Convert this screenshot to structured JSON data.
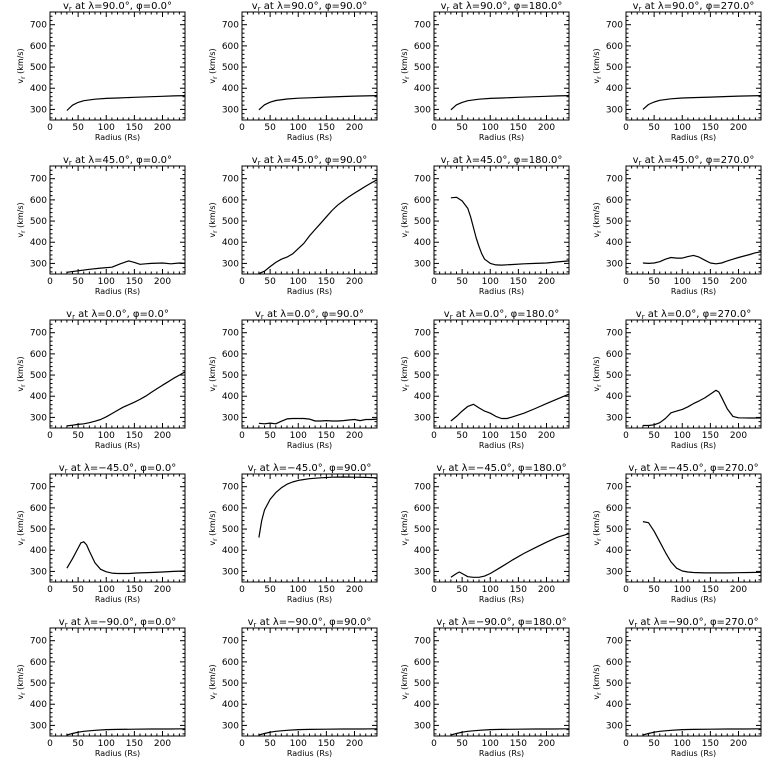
{
  "chart_data": [
    {
      "type": "line",
      "title": "v_r at λ=90.0°, φ=0.0°",
      "title_parts": {
        "var": "v",
        "sub": "r",
        "lat": "90.0",
        "lon": "0.0"
      },
      "xlabel": "Radius (Rs)",
      "ylabel": "v_r (km/s)",
      "xlim": [
        0,
        240
      ],
      "ylim": [
        250,
        760
      ],
      "x": [
        30,
        40,
        50,
        60,
        80,
        100,
        120,
        150,
        180,
        200,
        220,
        240
      ],
      "y": [
        295,
        320,
        333,
        341,
        348,
        352,
        354,
        357,
        360,
        362,
        364,
        365
      ]
    },
    {
      "type": "line",
      "title": "v_r at λ=90.0°, φ=90.0°",
      "title_parts": {
        "var": "v",
        "sub": "r",
        "lat": "90.0",
        "lon": "90.0"
      },
      "xlabel": "Radius (Rs)",
      "ylabel": "v_r (km/s)",
      "xlim": [
        0,
        240
      ],
      "ylim": [
        250,
        760
      ],
      "x": [
        30,
        40,
        50,
        60,
        80,
        100,
        120,
        150,
        180,
        200,
        220,
        240
      ],
      "y": [
        298,
        322,
        334,
        342,
        349,
        353,
        355,
        358,
        361,
        363,
        364,
        365
      ]
    },
    {
      "type": "line",
      "title": "v_r at λ=90.0°, φ=180.0°",
      "title_parts": {
        "var": "v",
        "sub": "r",
        "lat": "90.0",
        "lon": "180.0"
      },
      "xlabel": "Radius (Rs)",
      "ylabel": "v_r (km/s)",
      "xlim": [
        0,
        240
      ],
      "ylim": [
        250,
        760
      ],
      "x": [
        30,
        40,
        50,
        60,
        80,
        100,
        120,
        150,
        180,
        200,
        220,
        240
      ],
      "y": [
        298,
        322,
        333,
        341,
        348,
        352,
        354,
        357,
        360,
        362,
        364,
        365
      ]
    },
    {
      "type": "line",
      "title": "v_r at λ=90.0°, φ=270.0°",
      "title_parts": {
        "var": "v",
        "sub": "r",
        "lat": "90.0",
        "lon": "270.0"
      },
      "xlabel": "Radius (Rs)",
      "ylabel": "v_r (km/s)",
      "xlim": [
        0,
        240
      ],
      "ylim": [
        250,
        760
      ],
      "x": [
        30,
        40,
        50,
        60,
        80,
        100,
        120,
        150,
        180,
        200,
        220,
        240
      ],
      "y": [
        300,
        323,
        335,
        343,
        350,
        354,
        356,
        358,
        361,
        363,
        364,
        365
      ]
    },
    {
      "type": "line",
      "title": "v_r at λ=45.0°, φ=0.0°",
      "title_parts": {
        "var": "v",
        "sub": "r",
        "lat": "45.0",
        "lon": "0.0"
      },
      "xlabel": "Radius (Rs)",
      "ylabel": "v_r (km/s)",
      "xlim": [
        0,
        240
      ],
      "ylim": [
        250,
        760
      ],
      "x": [
        30,
        50,
        70,
        90,
        110,
        125,
        140,
        150,
        160,
        170,
        180,
        200,
        215,
        230,
        240
      ],
      "y": [
        258,
        265,
        272,
        278,
        282,
        298,
        312,
        305,
        296,
        298,
        300,
        302,
        298,
        302,
        300
      ]
    },
    {
      "type": "line",
      "title": "v_r at λ=45.0°, φ=90.0°",
      "title_parts": {
        "var": "v",
        "sub": "r",
        "lat": "45.0",
        "lon": "90.0"
      },
      "xlabel": "Radius (Rs)",
      "ylabel": "v_r (km/s)",
      "xlim": [
        0,
        240
      ],
      "ylim": [
        250,
        760
      ],
      "x": [
        30,
        40,
        50,
        60,
        70,
        80,
        90,
        100,
        110,
        120,
        130,
        140,
        150,
        160,
        170,
        180,
        190,
        200,
        210,
        220,
        230,
        240
      ],
      "y": [
        252,
        263,
        285,
        305,
        320,
        330,
        345,
        370,
        395,
        430,
        460,
        490,
        520,
        550,
        575,
        595,
        615,
        632,
        648,
        665,
        680,
        695
      ]
    },
    {
      "type": "line",
      "title": "v_r at λ=45.0°, φ=180.0°",
      "title_parts": {
        "var": "v",
        "sub": "r",
        "lat": "45.0",
        "lon": "180.0"
      },
      "xlabel": "Radius (Rs)",
      "ylabel": "v_r (km/s)",
      "xlim": [
        0,
        240
      ],
      "ylim": [
        250,
        760
      ],
      "x": [
        30,
        40,
        50,
        60,
        65,
        70,
        75,
        80,
        85,
        90,
        100,
        110,
        120,
        140,
        160,
        180,
        200,
        220,
        240
      ],
      "y": [
        610,
        612,
        595,
        560,
        520,
        470,
        420,
        380,
        345,
        320,
        300,
        293,
        292,
        295,
        298,
        300,
        302,
        307,
        312
      ]
    },
    {
      "type": "line",
      "title": "v_r at λ=45.0°, φ=270.0°",
      "title_parts": {
        "var": "v",
        "sub": "r",
        "lat": "45.0",
        "lon": "270.0"
      },
      "xlabel": "Radius (Rs)",
      "ylabel": "v_r (km/s)",
      "xlim": [
        0,
        240
      ],
      "ylim": [
        250,
        760
      ],
      "x": [
        30,
        40,
        50,
        60,
        70,
        80,
        90,
        100,
        110,
        120,
        130,
        140,
        150,
        160,
        170,
        180,
        190,
        200,
        210,
        220,
        230,
        240
      ],
      "y": [
        302,
        300,
        302,
        308,
        320,
        328,
        325,
        325,
        332,
        338,
        330,
        315,
        302,
        298,
        302,
        312,
        320,
        328,
        335,
        342,
        350,
        355
      ]
    },
    {
      "type": "line",
      "title": "v_r at λ=0.0°, φ=0.0°",
      "title_parts": {
        "var": "v",
        "sub": "r",
        "lat": "0.0",
        "lon": "0.0"
      },
      "xlabel": "Radius (Rs)",
      "ylabel": "v_r (km/s)",
      "xlim": [
        0,
        240
      ],
      "ylim": [
        250,
        760
      ],
      "x": [
        30,
        40,
        50,
        60,
        70,
        80,
        90,
        100,
        110,
        120,
        130,
        140,
        150,
        160,
        170,
        180,
        190,
        200,
        210,
        220,
        230,
        240
      ],
      "y": [
        260,
        263,
        267,
        270,
        275,
        282,
        290,
        303,
        318,
        333,
        348,
        360,
        372,
        385,
        400,
        418,
        435,
        452,
        468,
        485,
        500,
        515
      ]
    },
    {
      "type": "line",
      "title": "v_r at λ=0.0°, φ=90.0°",
      "title_parts": {
        "var": "v",
        "sub": "r",
        "lat": "0.0",
        "lon": "90.0"
      },
      "xlabel": "Radius (Rs)",
      "ylabel": "v_r (km/s)",
      "xlim": [
        0,
        240
      ],
      "ylim": [
        250,
        760
      ],
      "x": [
        30,
        40,
        50,
        60,
        70,
        80,
        90,
        100,
        110,
        120,
        130,
        140,
        150,
        160,
        170,
        180,
        190,
        200,
        210,
        220,
        230,
        240
      ],
      "y": [
        272,
        270,
        273,
        270,
        282,
        293,
        295,
        295,
        295,
        292,
        283,
        283,
        285,
        283,
        283,
        285,
        288,
        290,
        285,
        290,
        290,
        292
      ]
    },
    {
      "type": "line",
      "title": "v_r at λ=0.0°, φ=180.0°",
      "title_parts": {
        "var": "v",
        "sub": "r",
        "lat": "0.0",
        "lon": "180.0"
      },
      "xlabel": "Radius (Rs)",
      "ylabel": "v_r (km/s)",
      "xlim": [
        0,
        240
      ],
      "ylim": [
        250,
        760
      ],
      "x": [
        30,
        40,
        50,
        60,
        70,
        80,
        90,
        100,
        110,
        120,
        130,
        140,
        160,
        180,
        200,
        220,
        240
      ],
      "y": [
        283,
        305,
        330,
        352,
        362,
        345,
        330,
        320,
        305,
        295,
        295,
        303,
        320,
        342,
        365,
        388,
        410
      ]
    },
    {
      "type": "line",
      "title": "v_r at λ=0.0°, φ=270.0°",
      "title_parts": {
        "var": "v",
        "sub": "r",
        "lat": "0.0",
        "lon": "270.0"
      },
      "xlabel": "Radius (Rs)",
      "ylabel": "v_r (km/s)",
      "xlim": [
        0,
        240
      ],
      "ylim": [
        250,
        760
      ],
      "x": [
        30,
        40,
        50,
        60,
        70,
        80,
        90,
        100,
        110,
        120,
        130,
        140,
        150,
        160,
        165,
        170,
        180,
        190,
        200,
        220,
        240
      ],
      "y": [
        262,
        262,
        265,
        275,
        295,
        322,
        330,
        338,
        350,
        365,
        378,
        392,
        410,
        428,
        420,
        395,
        340,
        305,
        298,
        297,
        297
      ]
    },
    {
      "type": "line",
      "title": "v_r at λ=−45.0°, φ=0.0°",
      "title_parts": {
        "var": "v",
        "sub": "r",
        "lat": "−45.0",
        "lon": "0.0"
      },
      "xlabel": "Radius (Rs)",
      "ylabel": "v_r (km/s)",
      "xlim": [
        0,
        240
      ],
      "ylim": [
        250,
        760
      ],
      "x": [
        30,
        40,
        50,
        55,
        60,
        65,
        70,
        80,
        90,
        100,
        110,
        120,
        130,
        140,
        150,
        160,
        180,
        200,
        220,
        240
      ],
      "y": [
        315,
        360,
        410,
        435,
        440,
        425,
        395,
        340,
        310,
        298,
        292,
        290,
        290,
        290,
        292,
        293,
        295,
        297,
        300,
        302
      ]
    },
    {
      "type": "line",
      "title": "v_r at λ=−45.0°, φ=90.0°",
      "title_parts": {
        "var": "v",
        "sub": "r",
        "lat": "−45.0",
        "lon": "90.0"
      },
      "xlabel": "Radius (Rs)",
      "ylabel": "v_r (km/s)",
      "xlim": [
        0,
        240
      ],
      "ylim": [
        250,
        760
      ],
      "x": [
        30,
        35,
        40,
        50,
        60,
        70,
        80,
        90,
        100,
        120,
        140,
        160,
        180,
        200,
        220,
        240
      ],
      "y": [
        460,
        540,
        590,
        640,
        672,
        695,
        712,
        722,
        730,
        738,
        742,
        745,
        746,
        745,
        744,
        742
      ]
    },
    {
      "type": "line",
      "title": "v_r at λ=−45.0°, φ=180.0°",
      "title_parts": {
        "var": "v",
        "sub": "r",
        "lat": "−45.0",
        "lon": "180.0"
      },
      "xlabel": "Radius (Rs)",
      "ylabel": "v_r (km/s)",
      "xlim": [
        0,
        240
      ],
      "ylim": [
        250,
        760
      ],
      "x": [
        30,
        40,
        45,
        50,
        60,
        70,
        80,
        90,
        100,
        120,
        140,
        160,
        180,
        200,
        220,
        240
      ],
      "y": [
        272,
        290,
        297,
        290,
        275,
        272,
        272,
        278,
        290,
        322,
        355,
        385,
        412,
        438,
        462,
        478
      ]
    },
    {
      "type": "line",
      "title": "v_r at λ=−45.0°, φ=270.0°",
      "title_parts": {
        "var": "v",
        "sub": "r",
        "lat": "−45.0",
        "lon": "270.0"
      },
      "xlabel": "Radius (Rs)",
      "ylabel": "v_r (km/s)",
      "xlim": [
        0,
        240
      ],
      "ylim": [
        250,
        760
      ],
      "x": [
        30,
        40,
        50,
        60,
        70,
        80,
        90,
        100,
        110,
        120,
        140,
        160,
        180,
        200,
        220,
        240
      ],
      "y": [
        535,
        530,
        490,
        440,
        390,
        345,
        315,
        302,
        297,
        295,
        293,
        293,
        293,
        294,
        295,
        296
      ]
    },
    {
      "type": "line",
      "title": "v_r at λ=−90.0°, φ=0.0°",
      "title_parts": {
        "var": "v",
        "sub": "r",
        "lat": "−90.0",
        "lon": "0.0"
      },
      "xlabel": "Radius (Rs)",
      "ylabel": "v_r (km/s)",
      "xlim": [
        0,
        240
      ],
      "ylim": [
        250,
        760
      ],
      "x": [
        30,
        40,
        50,
        60,
        80,
        100,
        120,
        150,
        180,
        210,
        240
      ],
      "y": [
        255,
        262,
        268,
        272,
        277,
        280,
        281,
        282,
        283,
        283,
        284
      ]
    },
    {
      "type": "line",
      "title": "v_r at λ=−90.0°, φ=90.0°",
      "title_parts": {
        "var": "v",
        "sub": "r",
        "lat": "−90.0",
        "lon": "90.0"
      },
      "xlabel": "Radius (Rs)",
      "ylabel": "v_r (km/s)",
      "xlim": [
        0,
        240
      ],
      "ylim": [
        250,
        760
      ],
      "x": [
        30,
        40,
        50,
        60,
        80,
        100,
        120,
        150,
        180,
        210,
        240
      ],
      "y": [
        255,
        262,
        268,
        272,
        277,
        280,
        281,
        282,
        283,
        283,
        284
      ]
    },
    {
      "type": "line",
      "title": "v_r at λ=−90.0°, φ=180.0°",
      "title_parts": {
        "var": "v",
        "sub": "r",
        "lat": "−90.0",
        "lon": "180.0"
      },
      "xlabel": "Radius (Rs)",
      "ylabel": "v_r (km/s)",
      "xlim": [
        0,
        240
      ],
      "ylim": [
        250,
        760
      ],
      "x": [
        30,
        40,
        50,
        60,
        80,
        100,
        120,
        150,
        180,
        210,
        240
      ],
      "y": [
        255,
        262,
        268,
        272,
        277,
        280,
        281,
        282,
        283,
        283,
        284
      ]
    },
    {
      "type": "line",
      "title": "v_r at λ=−90.0°, φ=270.0°",
      "title_parts": {
        "var": "v",
        "sub": "r",
        "lat": "−90.0",
        "lon": "270.0"
      },
      "xlabel": "Radius (Rs)",
      "ylabel": "v_r (km/s)",
      "xlim": [
        0,
        240
      ],
      "ylim": [
        250,
        760
      ],
      "x": [
        30,
        40,
        50,
        60,
        80,
        100,
        120,
        150,
        180,
        210,
        240
      ],
      "y": [
        255,
        262,
        268,
        272,
        277,
        280,
        281,
        282,
        283,
        283,
        284
      ]
    }
  ],
  "axis": {
    "x_ticks": [
      0,
      50,
      100,
      150,
      200
    ],
    "x_tick_labels": [
      "0",
      "50",
      "100",
      "150",
      "200"
    ],
    "y_ticks": [
      300,
      400,
      500,
      600,
      700
    ],
    "y_tick_labels": [
      "300",
      "400",
      "500",
      "600",
      "700"
    ],
    "xlabel_text": "Radius (Rs)",
    "ylabel_text": "v (km/s)",
    "ylabel_sub": "r",
    "title_prefix": " at λ=",
    "title_mid": "°, φ=",
    "title_suffix": "°"
  }
}
